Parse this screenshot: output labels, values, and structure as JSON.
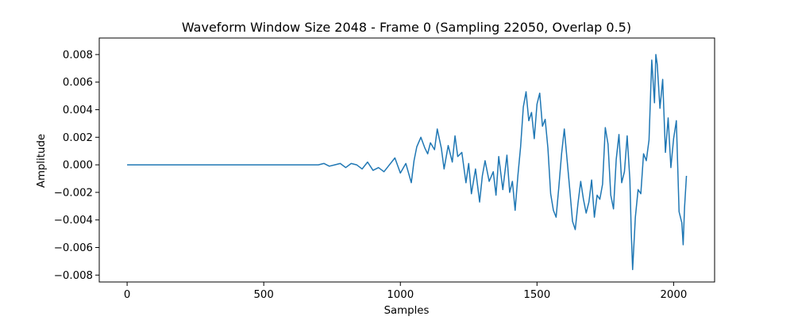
{
  "chart_data": {
    "type": "line",
    "title": "Waveform Window Size 2048 - Frame 0 (Sampling 22050, Overlap 0.5)",
    "xlabel": "Samples",
    "ylabel": "Amplitude",
    "xlim": [
      -102,
      2150
    ],
    "ylim": [
      -0.0085,
      0.0092
    ],
    "x_ticks": [
      0,
      500,
      1000,
      1500,
      2000
    ],
    "x_tick_labels": [
      "0",
      "500",
      "1000",
      "1500",
      "2000"
    ],
    "y_ticks": [
      -0.008,
      -0.006,
      -0.004,
      -0.002,
      0.0,
      0.002,
      0.004,
      0.006,
      0.008
    ],
    "y_tick_labels": [
      "−0.008",
      "−0.006",
      "−0.004",
      "−0.002",
      "0.000",
      "0.002",
      "0.004",
      "0.006",
      "0.008"
    ],
    "grid": false,
    "series": [
      {
        "color": "#1f77b4",
        "x": [
          0,
          100,
          200,
          300,
          400,
          500,
          600,
          690,
          700,
          720,
          740,
          760,
          780,
          800,
          820,
          840,
          860,
          880,
          900,
          920,
          940,
          960,
          980,
          1000,
          1020,
          1040,
          1050,
          1060,
          1075,
          1090,
          1100,
          1110,
          1125,
          1135,
          1150,
          1160,
          1175,
          1190,
          1200,
          1210,
          1225,
          1240,
          1250,
          1260,
          1275,
          1290,
          1300,
          1310,
          1325,
          1340,
          1350,
          1360,
          1375,
          1390,
          1400,
          1410,
          1420,
          1430,
          1440,
          1450,
          1460,
          1470,
          1480,
          1490,
          1500,
          1510,
          1520,
          1530,
          1540,
          1550,
          1560,
          1570,
          1580,
          1590,
          1600,
          1610,
          1620,
          1630,
          1640,
          1650,
          1660,
          1670,
          1680,
          1690,
          1700,
          1710,
          1720,
          1730,
          1740,
          1750,
          1760,
          1770,
          1780,
          1790,
          1800,
          1810,
          1820,
          1830,
          1840,
          1845,
          1850,
          1860,
          1870,
          1880,
          1890,
          1900,
          1910,
          1920,
          1930,
          1935,
          1940,
          1950,
          1960,
          1970,
          1980,
          1990,
          2000,
          2010,
          2020,
          2030,
          2035,
          2040,
          2047
        ],
        "values": [
          0.0,
          0.0,
          0.0,
          0.0,
          0.0,
          0.0,
          0.0,
          0.0,
          0.0,
          0.0001,
          -0.0001,
          0.0,
          0.0001,
          -0.0002,
          0.0001,
          0.0,
          -0.0003,
          0.0002,
          -0.0004,
          -0.0002,
          -0.0005,
          0.0,
          0.0005,
          -0.0006,
          0.0001,
          -0.0013,
          0.0003,
          0.0013,
          0.002,
          0.0012,
          0.0008,
          0.0016,
          0.0011,
          0.0026,
          0.0012,
          -0.0003,
          0.0014,
          0.0002,
          0.0021,
          0.0006,
          0.0009,
          -0.0013,
          0.0001,
          -0.0021,
          -0.0003,
          -0.0027,
          -0.0008,
          0.0003,
          -0.0012,
          -0.0005,
          -0.0022,
          0.0006,
          -0.0018,
          0.0007,
          -0.002,
          -0.0012,
          -0.0033,
          -0.0008,
          0.0013,
          0.0042,
          0.0053,
          0.0032,
          0.0038,
          0.0019,
          0.0044,
          0.0052,
          0.0028,
          0.0033,
          0.0012,
          -0.0021,
          -0.0033,
          -0.0038,
          -0.0016,
          0.0008,
          0.0026,
          0.0004,
          -0.0018,
          -0.0041,
          -0.0047,
          -0.0028,
          -0.0012,
          -0.0025,
          -0.0035,
          -0.0027,
          -0.0011,
          -0.0038,
          -0.0022,
          -0.0025,
          -0.0014,
          0.0027,
          0.0015,
          -0.0022,
          -0.0032,
          0.0004,
          0.0022,
          -0.0013,
          -0.0005,
          0.0021,
          -0.0011,
          -0.0049,
          -0.0076,
          -0.0038,
          -0.0018,
          -0.0021,
          0.0008,
          0.0003,
          0.0018,
          0.0076,
          0.0045,
          0.008,
          0.0073,
          0.0041,
          0.0062,
          0.0009,
          0.0034,
          -0.0002,
          0.0019,
          0.0032,
          -0.0034,
          -0.0042,
          -0.0058,
          -0.0031,
          -0.0008
        ]
      }
    ]
  }
}
